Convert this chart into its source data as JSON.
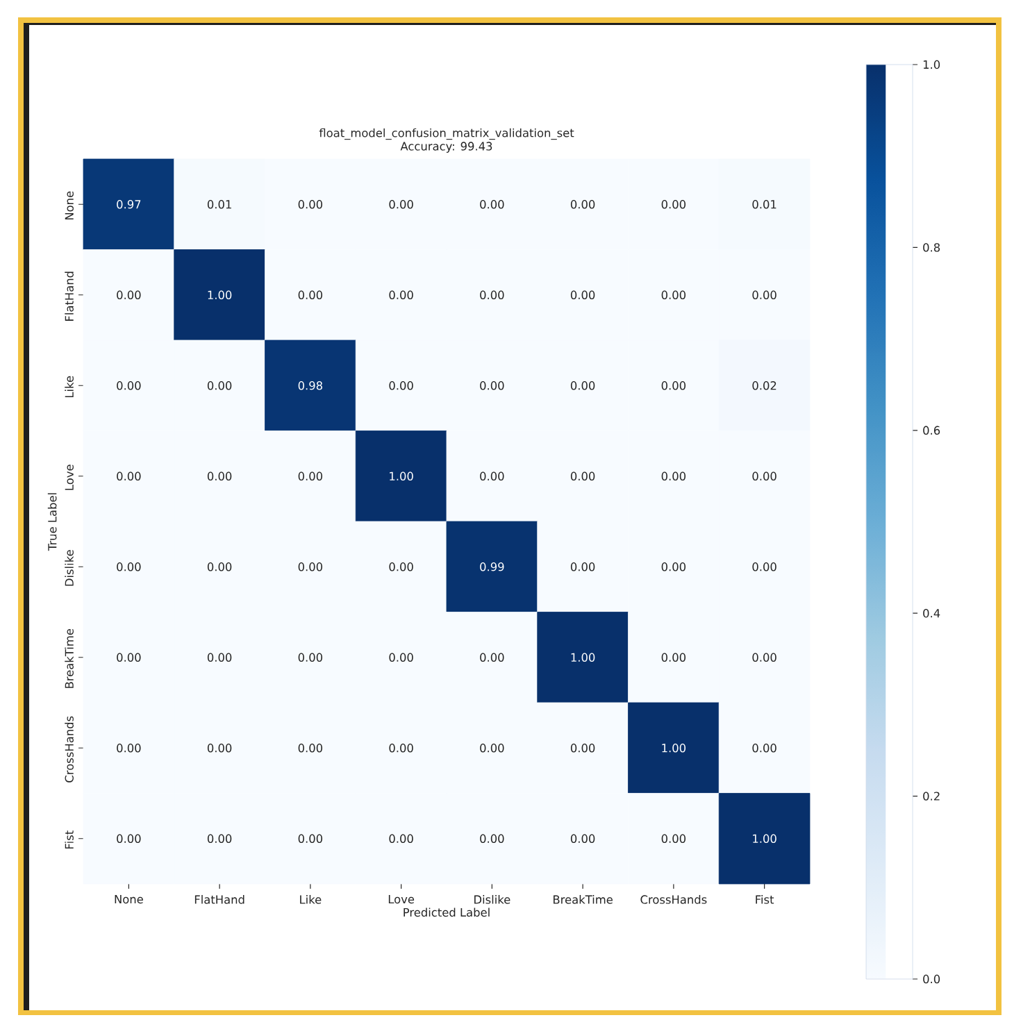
{
  "chart_data": {
    "type": "heatmap",
    "title": "float_model_confusion_matrix_validation_set",
    "subtitle": "Accuracy: 99.43",
    "xlabel": "Predicted Label",
    "ylabel": "True Label",
    "categories": [
      "None",
      "FlatHand",
      "Like",
      "Love",
      "Dislike",
      "BreakTime",
      "CrossHands",
      "Fist"
    ],
    "y_categories": [
      "None",
      "FlatHand",
      "Like",
      "Love",
      "Dislike",
      "BreakTime",
      "CrossHands",
      "Fist"
    ],
    "cells": [
      [
        0.97,
        0.01,
        0,
        0,
        0,
        0,
        0,
        0.01
      ],
      [
        0,
        1,
        0,
        0,
        0,
        0,
        0,
        0
      ],
      [
        0,
        0,
        0.98,
        0,
        0,
        0,
        0,
        0.02
      ],
      [
        0,
        0,
        0,
        1,
        0,
        0,
        0,
        0
      ],
      [
        0,
        0,
        0,
        0,
        0.99,
        0,
        0,
        0
      ],
      [
        0,
        0,
        0,
        0,
        0,
        1,
        0,
        0
      ],
      [
        0,
        0,
        0,
        0,
        0,
        0,
        1,
        0
      ],
      [
        0,
        0,
        0,
        0,
        0,
        0,
        0,
        1
      ]
    ],
    "cell_labels": [
      [
        "0.97",
        "0.01",
        "0.00",
        "0.00",
        "0.00",
        "0.00",
        "0.00",
        "0.01"
      ],
      [
        "0.00",
        "1.00",
        "0.00",
        "0.00",
        "0.00",
        "0.00",
        "0.00",
        "0.00"
      ],
      [
        "0.00",
        "0.00",
        "0.98",
        "0.00",
        "0.00",
        "0.00",
        "0.00",
        "0.02"
      ],
      [
        "0.00",
        "0.00",
        "0.00",
        "1.00",
        "0.00",
        "0.00",
        "0.00",
        "0.00"
      ],
      [
        "0.00",
        "0.00",
        "0.00",
        "0.00",
        "0.99",
        "0.00",
        "0.00",
        "0.00"
      ],
      [
        "0.00",
        "0.00",
        "0.00",
        "0.00",
        "0.00",
        "1.00",
        "0.00",
        "0.00"
      ],
      [
        "0.00",
        "0.00",
        "0.00",
        "0.00",
        "0.00",
        "0.00",
        "1.00",
        "0.00"
      ],
      [
        "0.00",
        "0.00",
        "0.00",
        "0.00",
        "0.00",
        "0.00",
        "0.00",
        "1.00"
      ]
    ],
    "clim": [
      0,
      1
    ],
    "cticks": [
      {
        "value": 0,
        "label": "0.0"
      },
      {
        "value": 0.2,
        "label": "0.2"
      },
      {
        "value": 0.4,
        "label": "0.4"
      },
      {
        "value": 0.6,
        "label": "0.6"
      },
      {
        "value": 0.8,
        "label": "0.8"
      },
      {
        "value": 1,
        "label": "1.0"
      }
    ]
  }
}
